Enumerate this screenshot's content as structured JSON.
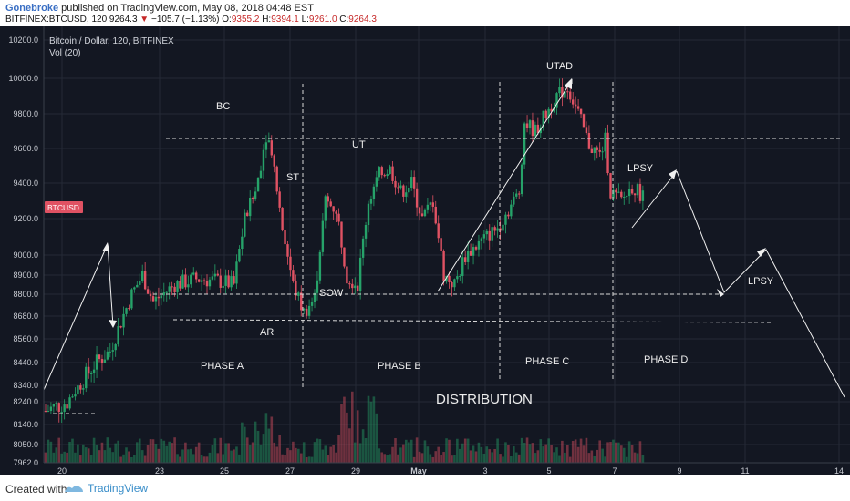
{
  "header": {
    "author": "Gonebroke",
    "published": "published on TradingView.com, May 08, 2018 04:48 EST",
    "symbol": "BITFINEX:BTCUSD, 120",
    "last": "9264.3",
    "change": "−105.7 (−1.13%)",
    "o_label": "O:",
    "o": "9355.2",
    "h_label": "H:",
    "h": "9394.1",
    "l_label": "L:",
    "l": "9261.0",
    "c_label": "C:",
    "c": "9264.3"
  },
  "legend": {
    "title": "Bitcoin / Dollar, 120, BITFINEX",
    "vol": "Vol (20)"
  },
  "price_badge": "BTCUSD",
  "footer": {
    "created_with": "Created with",
    "brand": "TradingView"
  },
  "colors": {
    "background": "#131722",
    "grid": "#242a36",
    "up": "#26a269",
    "down": "#e05263",
    "annotation": "#e8e8e8",
    "badge": "#e05263"
  },
  "chart_data": {
    "type": "candlestick",
    "y_axis_ticks": [
      "10200.0",
      "10000.0",
      "9800.0",
      "9600.0",
      "9400.0",
      "9200.0",
      "9000.0",
      "8900.0",
      "8800.0",
      "8680.0",
      "8560.0",
      "8440.0",
      "8340.0",
      "8240.0",
      "8140.0",
      "8050.0",
      "7962.0"
    ],
    "x_axis_ticks": [
      "20",
      "23",
      "25",
      "27",
      "29",
      "May",
      "3",
      "5",
      "7",
      "9",
      "11",
      "14"
    ],
    "annotations": {
      "bc": "BC",
      "st": "ST",
      "ut": "UT",
      "utad": "UTAD",
      "lpsy1": "LPSY",
      "lpsy2": "LPSY",
      "ar": "AR",
      "sow": "SOW",
      "phase_a": "PHASE A",
      "phase_b": "PHASE B",
      "phase_c": "PHASE C",
      "phase_d": "PHASE D",
      "distribution": "DISTRIBUTION"
    },
    "price_path": [
      [
        0,
        8200
      ],
      [
        4,
        8240
      ],
      [
        6,
        8330
      ],
      [
        9,
        8430
      ],
      [
        12,
        8500
      ],
      [
        16,
        8800
      ],
      [
        18,
        8900
      ],
      [
        20,
        8760
      ],
      [
        24,
        8850
      ],
      [
        28,
        8880
      ],
      [
        32,
        8870
      ],
      [
        35,
        8850
      ],
      [
        37,
        9200
      ],
      [
        39,
        9350
      ],
      [
        41,
        9680
      ],
      [
        42,
        9600
      ],
      [
        44,
        9150
      ],
      [
        46,
        8850
      ],
      [
        48,
        8700
      ],
      [
        50,
        8780
      ],
      [
        52,
        9300
      ],
      [
        54,
        9250
      ],
      [
        56,
        8900
      ],
      [
        58,
        8850
      ],
      [
        60,
        9300
      ],
      [
        62,
        9450
      ],
      [
        64,
        9480
      ],
      [
        66,
        9350
      ],
      [
        68,
        9400
      ],
      [
        70,
        9200
      ],
      [
        72,
        9300
      ],
      [
        74,
        8900
      ],
      [
        76,
        8850
      ],
      [
        78,
        9000
      ],
      [
        80,
        9050
      ],
      [
        82,
        9100
      ],
      [
        84,
        9150
      ],
      [
        86,
        9250
      ],
      [
        88,
        9350
      ],
      [
        89,
        9750
      ],
      [
        91,
        9700
      ],
      [
        93,
        9800
      ],
      [
        95,
        9900
      ],
      [
        97,
        9950
      ],
      [
        99,
        9800
      ],
      [
        101,
        9620
      ],
      [
        103,
        9560
      ],
      [
        104,
        9650
      ],
      [
        105,
        9350
      ],
      [
        107,
        9300
      ],
      [
        109,
        9380
      ],
      [
        111,
        9330
      ]
    ]
  }
}
